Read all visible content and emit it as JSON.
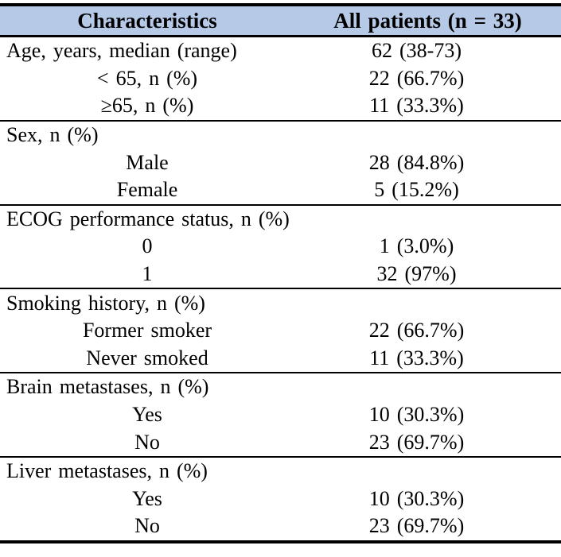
{
  "table": {
    "header": {
      "characteristics": "Characteristics",
      "all_patients": "All patients (n = 33)"
    },
    "header_bg_color": "#b6c9e7",
    "border_color": "#000000",
    "groups": [
      {
        "rows": [
          {
            "label": "Age, years, median (range)",
            "value": "62 (38-73)"
          },
          {
            "label": "< 65, n (%)",
            "value": "22 (66.7%)"
          },
          {
            "label": "≥65, n (%)",
            "value": "11 (33.3%)"
          }
        ]
      },
      {
        "rows": [
          {
            "label": "Sex, n (%)",
            "value": ""
          },
          {
            "label": "Male",
            "value": "28 (84.8%)"
          },
          {
            "label": "Female",
            "value": "5 (15.2%)"
          }
        ]
      },
      {
        "rows": [
          {
            "label": "ECOG performance status, n (%)",
            "value": ""
          },
          {
            "label": "0",
            "value": "1 (3.0%)"
          },
          {
            "label": "1",
            "value": "32 (97%)"
          }
        ]
      },
      {
        "rows": [
          {
            "label": "Smoking history, n (%)",
            "value": ""
          },
          {
            "label": "Former smoker",
            "value": "22 (66.7%)"
          },
          {
            "label": "Never smoked",
            "value": "11 (33.3%)"
          }
        ]
      },
      {
        "rows": [
          {
            "label": "Brain metastases, n (%)",
            "value": ""
          },
          {
            "label": "Yes",
            "value": "10 (30.3%)"
          },
          {
            "label": "No",
            "value": "23 (69.7%)"
          }
        ]
      },
      {
        "rows": [
          {
            "label": "Liver metastases, n (%)",
            "value": ""
          },
          {
            "label": "Yes",
            "value": "10 (30.3%)"
          },
          {
            "label": "No",
            "value": "23 (69.7%)"
          }
        ]
      }
    ]
  }
}
